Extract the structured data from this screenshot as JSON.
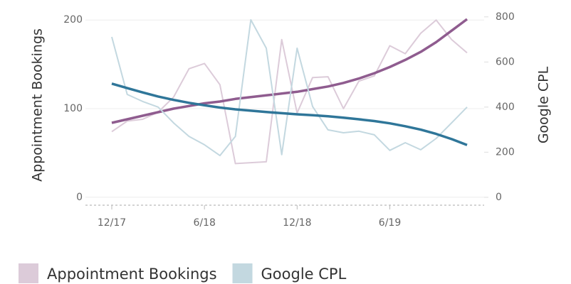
{
  "chart_data": {
    "type": "line",
    "categories": [
      "12/17",
      null,
      null,
      null,
      null,
      null,
      "6/18",
      null,
      null,
      null,
      null,
      null,
      "12/18",
      null,
      null,
      null,
      null,
      null,
      "6/19",
      null,
      null,
      null,
      null,
      null
    ],
    "series": [
      {
        "name": "Appointment Bookings",
        "color": "#dccbd9",
        "values": [
          74,
          86,
          88,
          96,
          113,
          145,
          151,
          127,
          38,
          39,
          40,
          178,
          95,
          135,
          136,
          100,
          131,
          137,
          171,
          162,
          185,
          200,
          178,
          163
        ],
        "trend": {
          "color": "#8f5c8f",
          "values": [
            84,
            88,
            92,
            96,
            100,
            103,
            106,
            108,
            111,
            113,
            115,
            117,
            119,
            122,
            125,
            129,
            134,
            140,
            147,
            155,
            164,
            175,
            188,
            201
          ]
        }
      },
      {
        "name": "Google CPL",
        "color": "#c3d8e0",
        "axis": "y2",
        "values": [
          711,
          456,
          425,
          400,
          330,
          270,
          233,
          185,
          270,
          787,
          661,
          189,
          661,
          403,
          299,
          286,
          293,
          277,
          208,
          242,
          211,
          261,
          330,
          400
        ],
        "trend": {
          "color": "#2f7699",
          "values": [
            504,
            484,
            465,
            447,
            432,
            419,
            408,
            398,
            390,
            384,
            378,
            373,
            368,
            364,
            359,
            353,
            346,
            338,
            328,
            315,
            300,
            281,
            258,
            232
          ]
        }
      }
    ],
    "y_label": "Appointment Bookings",
    "y2_label": "Google CPL",
    "ylim": [
      -9,
      213
    ],
    "yticks": [
      0,
      100,
      200
    ],
    "y2lim": [
      -35,
      837
    ],
    "y2ticks": [
      0,
      200,
      400,
      600,
      800
    ],
    "grid": true,
    "legend": "bottom"
  }
}
